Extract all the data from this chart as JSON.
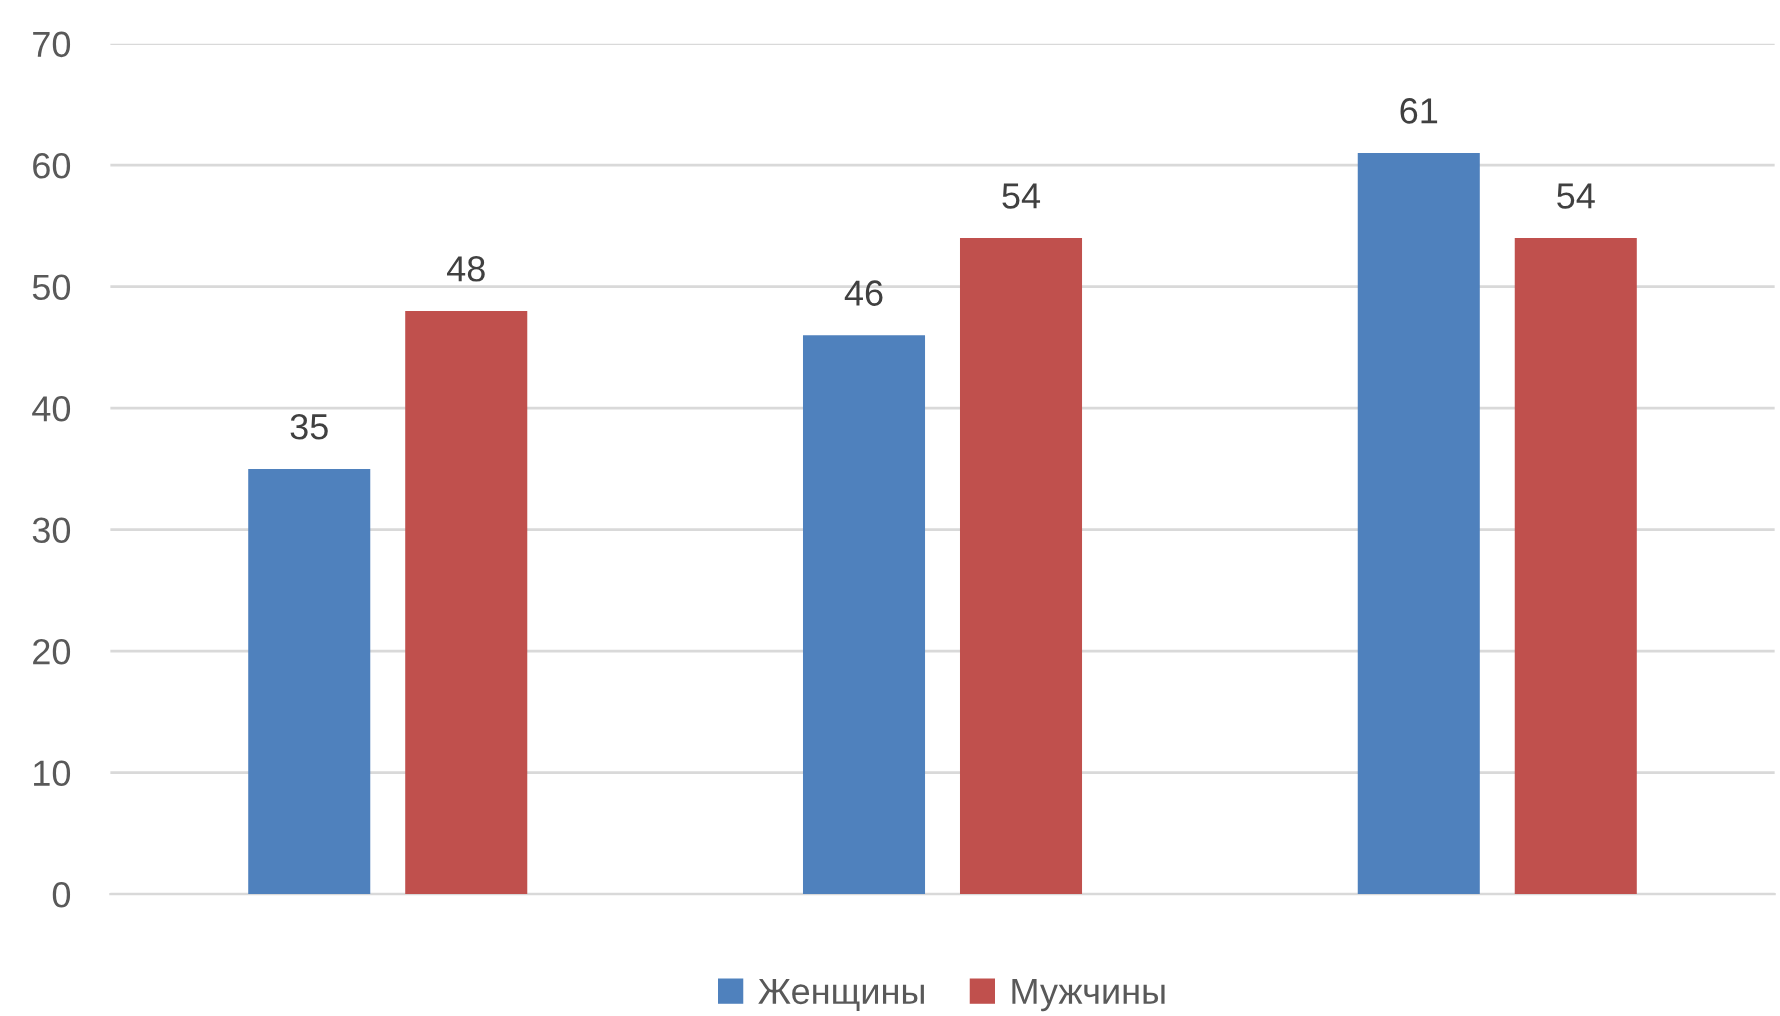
{
  "chart_data": {
    "type": "bar",
    "categories": [
      null,
      null,
      null
    ],
    "series": [
      {
        "name": "Женщины",
        "color": "#4f81bd",
        "values": [
          35,
          46,
          61
        ]
      },
      {
        "name": "Мужчины",
        "color": "#c0504d",
        "values": [
          48,
          54,
          54
        ]
      }
    ],
    "ylim": [
      0,
      70
    ],
    "yticks": [
      0,
      10,
      20,
      30,
      40,
      50,
      60,
      70
    ],
    "grid": "y",
    "legend": "bottom",
    "data_labels": true
  }
}
